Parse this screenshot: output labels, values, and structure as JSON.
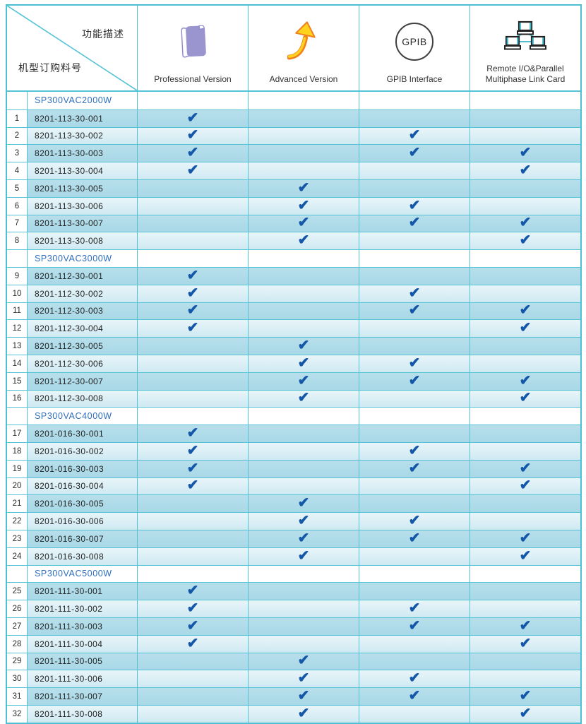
{
  "header": {
    "diagonal_top_label": "功能描述",
    "diagonal_bottom_label": "机型订购料号",
    "columns": [
      {
        "label": "Professional Version",
        "icon": "book-icon"
      },
      {
        "label": "Advanced Version",
        "icon": "growth-arrow-icon"
      },
      {
        "label": "GPIB Interface",
        "icon": "gpib-circle-icon",
        "icon_text": "GPIB"
      },
      {
        "label": "Remote I/O&Parallel Multiphase Link Card",
        "icon": "network-computers-icon"
      }
    ]
  },
  "marks": {
    "check": "✔"
  },
  "colors": {
    "grid_border": "#55c3d6",
    "outer_border": "#4fc0d4",
    "row_dark": "#aed9e7",
    "row_light": "#ddeff6",
    "check_blue": "#1457a8",
    "model_blue": "#2e6fbe",
    "book_purple": "#9a95cf",
    "arrow_yellow": "#ffd21e",
    "arrow_orange": "#f0821e",
    "network_teal": "#3bb3c3"
  },
  "groups": [
    {
      "model": "SP300VAC2000W",
      "rows": [
        {
          "num": 1,
          "part": "8201-113-30-001",
          "checks": [
            true,
            false,
            false,
            false
          ]
        },
        {
          "num": 2,
          "part": "8201-113-30-002",
          "checks": [
            true,
            false,
            true,
            false
          ]
        },
        {
          "num": 3,
          "part": "8201-113-30-003",
          "checks": [
            true,
            false,
            true,
            true
          ]
        },
        {
          "num": 4,
          "part": "8201-113-30-004",
          "checks": [
            true,
            false,
            false,
            true
          ]
        },
        {
          "num": 5,
          "part": "8201-113-30-005",
          "checks": [
            false,
            true,
            false,
            false
          ]
        },
        {
          "num": 6,
          "part": "8201-113-30-006",
          "checks": [
            false,
            true,
            true,
            false
          ]
        },
        {
          "num": 7,
          "part": "8201-113-30-007",
          "checks": [
            false,
            true,
            true,
            true
          ]
        },
        {
          "num": 8,
          "part": "8201-113-30-008",
          "checks": [
            false,
            true,
            false,
            true
          ]
        }
      ]
    },
    {
      "model": "SP300VAC3000W",
      "rows": [
        {
          "num": 9,
          "part": "8201-112-30-001",
          "checks": [
            true,
            false,
            false,
            false
          ]
        },
        {
          "num": 10,
          "part": "8201-112-30-002",
          "checks": [
            true,
            false,
            true,
            false
          ]
        },
        {
          "num": 11,
          "part": "8201-112-30-003",
          "checks": [
            true,
            false,
            true,
            true
          ]
        },
        {
          "num": 12,
          "part": "8201-112-30-004",
          "checks": [
            true,
            false,
            false,
            true
          ]
        },
        {
          "num": 13,
          "part": "8201-112-30-005",
          "checks": [
            false,
            true,
            false,
            false
          ]
        },
        {
          "num": 14,
          "part": "8201-112-30-006",
          "checks": [
            false,
            true,
            true,
            false
          ]
        },
        {
          "num": 15,
          "part": "8201-112-30-007",
          "checks": [
            false,
            true,
            true,
            true
          ]
        },
        {
          "num": 16,
          "part": "8201-112-30-008",
          "checks": [
            false,
            true,
            false,
            true
          ]
        }
      ]
    },
    {
      "model": "SP300VAC4000W",
      "rows": [
        {
          "num": 17,
          "part": "8201-016-30-001",
          "checks": [
            true,
            false,
            false,
            false
          ]
        },
        {
          "num": 18,
          "part": "8201-016-30-002",
          "checks": [
            true,
            false,
            true,
            false
          ]
        },
        {
          "num": 19,
          "part": "8201-016-30-003",
          "checks": [
            true,
            false,
            true,
            true
          ]
        },
        {
          "num": 20,
          "part": "8201-016-30-004",
          "checks": [
            true,
            false,
            false,
            true
          ]
        },
        {
          "num": 21,
          "part": "8201-016-30-005",
          "checks": [
            false,
            true,
            false,
            false
          ]
        },
        {
          "num": 22,
          "part": "8201-016-30-006",
          "checks": [
            false,
            true,
            true,
            false
          ]
        },
        {
          "num": 23,
          "part": "8201-016-30-007",
          "checks": [
            false,
            true,
            true,
            true
          ]
        },
        {
          "num": 24,
          "part": "8201-016-30-008",
          "checks": [
            false,
            true,
            false,
            true
          ]
        }
      ]
    },
    {
      "model": "SP300VAC5000W",
      "rows": [
        {
          "num": 25,
          "part": "8201-111-30-001",
          "checks": [
            true,
            false,
            false,
            false
          ]
        },
        {
          "num": 26,
          "part": "8201-111-30-002",
          "checks": [
            true,
            false,
            true,
            false
          ]
        },
        {
          "num": 27,
          "part": "8201-111-30-003",
          "checks": [
            true,
            false,
            true,
            true
          ]
        },
        {
          "num": 28,
          "part": "8201-111-30-004",
          "checks": [
            true,
            false,
            false,
            true
          ]
        },
        {
          "num": 29,
          "part": "8201-111-30-005",
          "checks": [
            false,
            true,
            false,
            false
          ]
        },
        {
          "num": 30,
          "part": "8201-111-30-006",
          "checks": [
            false,
            true,
            true,
            false
          ]
        },
        {
          "num": 31,
          "part": "8201-111-30-007",
          "checks": [
            false,
            true,
            true,
            true
          ]
        },
        {
          "num": 32,
          "part": "8201-111-30-008",
          "checks": [
            false,
            true,
            false,
            true
          ]
        }
      ]
    }
  ]
}
